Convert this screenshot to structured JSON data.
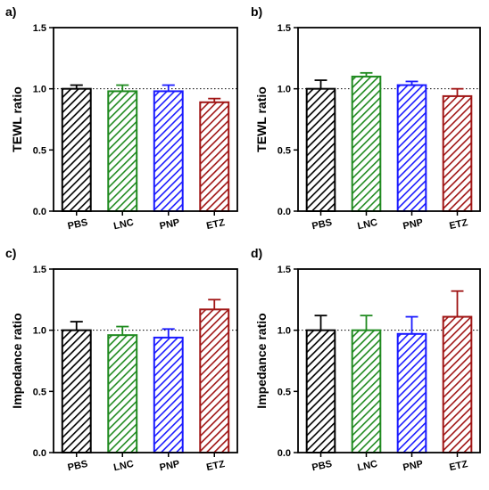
{
  "colors": {
    "PBS": "#000000",
    "LNC": "#1f8a1f",
    "PNP": "#1a1aff",
    "ETZ": "#a01515"
  },
  "chart_data": [
    {
      "panel": "a)",
      "type": "bar",
      "categories": [
        "PBS",
        "LNC",
        "PNP",
        "ETZ"
      ],
      "values": [
        1.0,
        0.98,
        0.98,
        0.89
      ],
      "errors": [
        0.03,
        0.05,
        0.05,
        0.03
      ],
      "ylabel": "TEWL ratio",
      "ylim": [
        0,
        1.5
      ],
      "yticks": [
        "0.0",
        "0.5",
        "1.0",
        "1.5"
      ],
      "reference_line": 1.0
    },
    {
      "panel": "b)",
      "type": "bar",
      "categories": [
        "PBS",
        "LNC",
        "PNP",
        "ETZ"
      ],
      "values": [
        1.0,
        1.1,
        1.03,
        0.94
      ],
      "errors": [
        0.07,
        0.03,
        0.03,
        0.06
      ],
      "ylabel": "TEWL ratio",
      "ylim": [
        0,
        1.5
      ],
      "yticks": [
        "0.0",
        "0.5",
        "1.0",
        "1.5"
      ],
      "reference_line": 1.0
    },
    {
      "panel": "c)",
      "type": "bar",
      "categories": [
        "PBS",
        "LNC",
        "PNP",
        "ETZ"
      ],
      "values": [
        1.0,
        0.96,
        0.94,
        1.17
      ],
      "errors": [
        0.07,
        0.07,
        0.07,
        0.08
      ],
      "ylabel": "Impedance ratio",
      "ylim": [
        0,
        1.5
      ],
      "yticks": [
        "0.0",
        "0.5",
        "1.0",
        "1.5"
      ],
      "reference_line": 1.0
    },
    {
      "panel": "d)",
      "type": "bar",
      "categories": [
        "PBS",
        "LNC",
        "PNP",
        "ETZ"
      ],
      "values": [
        1.0,
        1.0,
        0.97,
        1.11
      ],
      "errors": [
        0.12,
        0.12,
        0.14,
        0.21
      ],
      "ylabel": "Impedance ratio",
      "ylim": [
        0,
        1.5
      ],
      "yticks": [
        "0.0",
        "0.5",
        "1.0",
        "1.5"
      ],
      "reference_line": 1.0
    }
  ]
}
